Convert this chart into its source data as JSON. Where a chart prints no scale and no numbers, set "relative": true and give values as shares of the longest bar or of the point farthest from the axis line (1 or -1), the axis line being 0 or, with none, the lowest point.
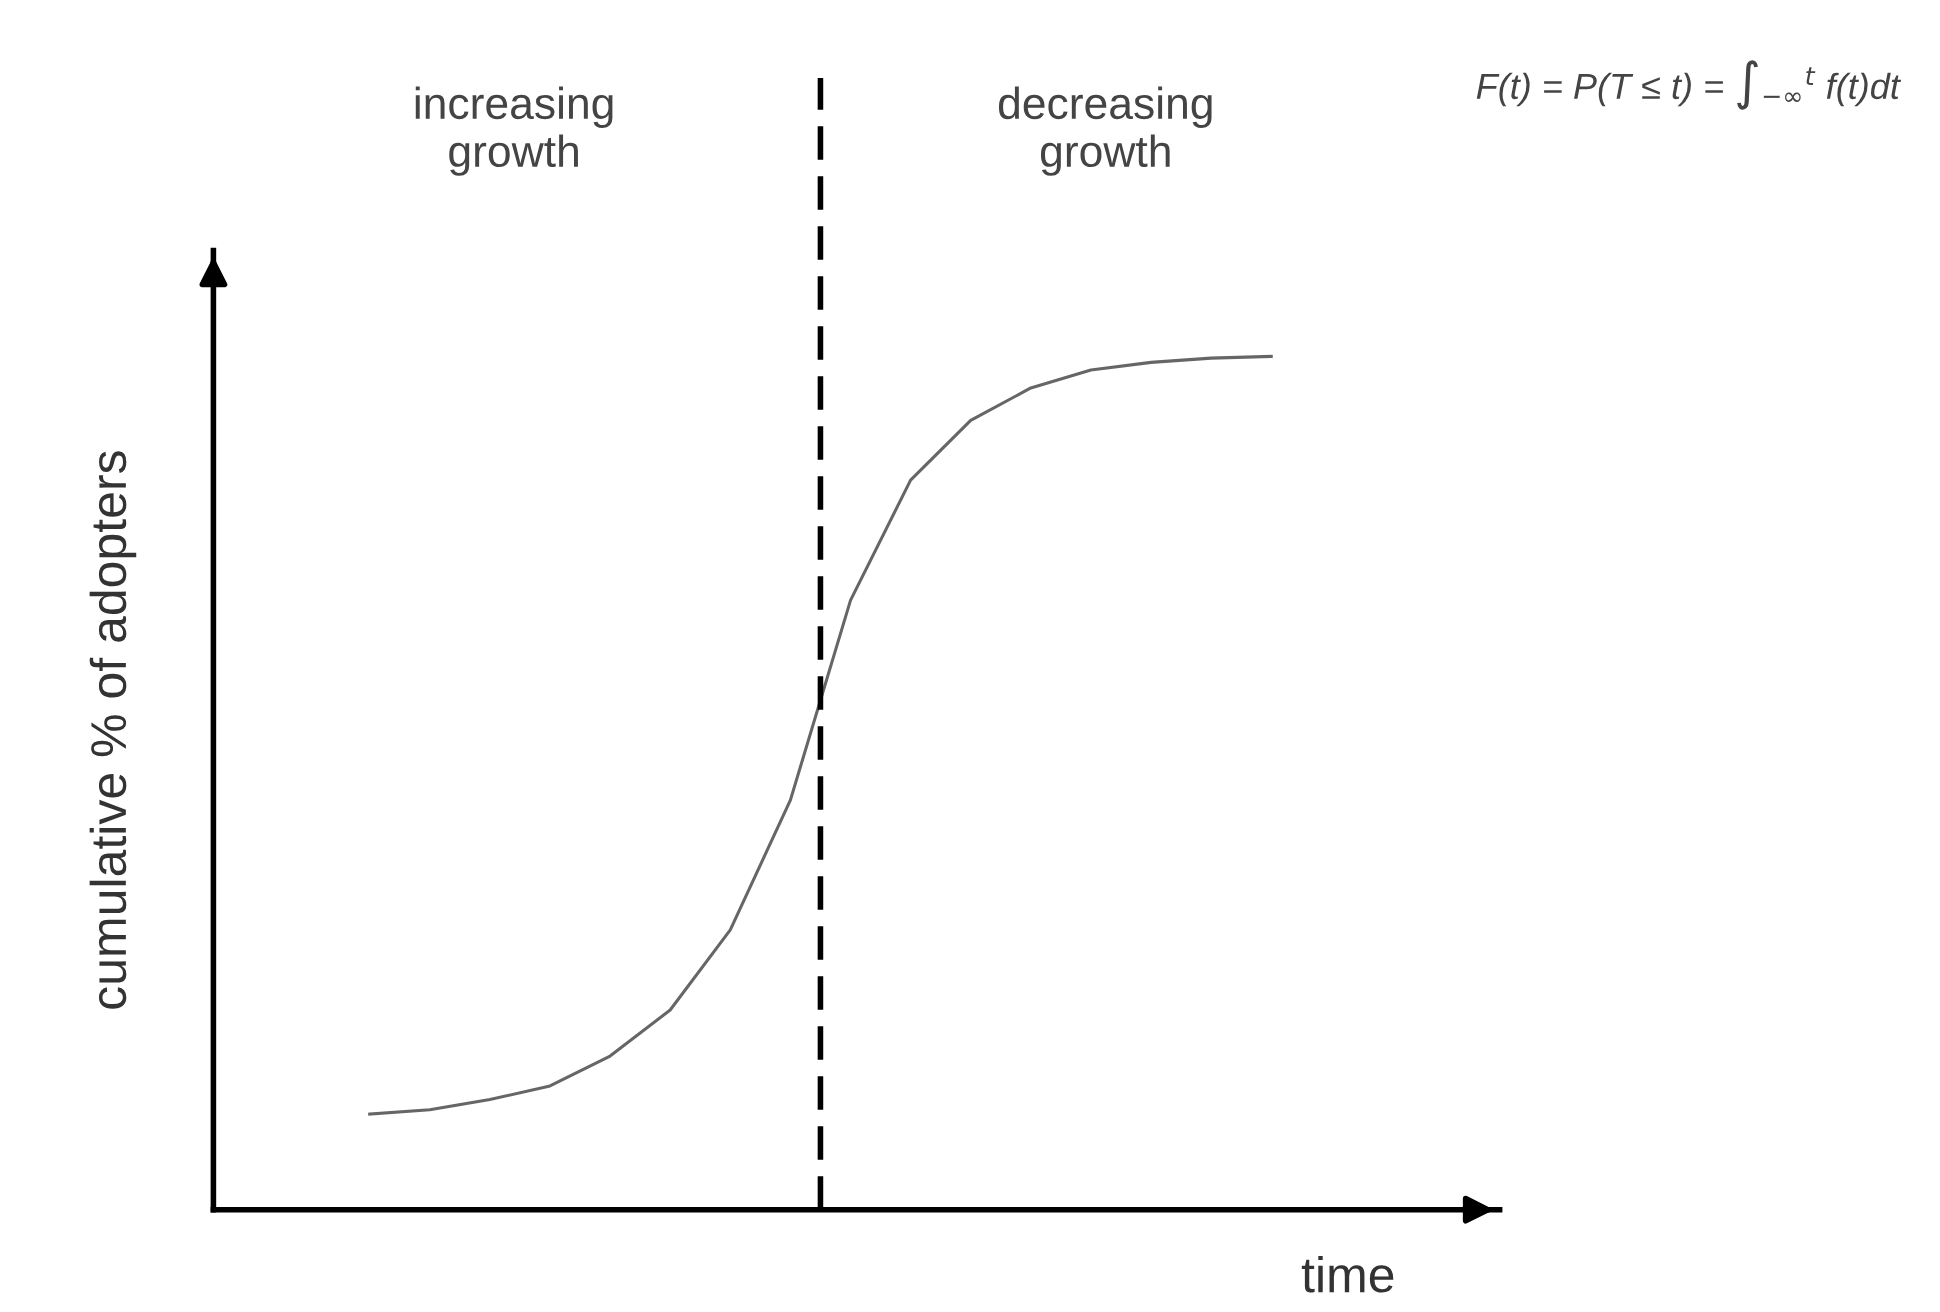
{
  "chart_data": {
    "type": "line",
    "relative": true,
    "xlabel": "time",
    "ylabel": "cumulative % of adopters",
    "categories": [
      null,
      null,
      null,
      null,
      null,
      null,
      null,
      null,
      null,
      null,
      null,
      null,
      null,
      null,
      null,
      null
    ],
    "series": [
      {
        "color": "#666666",
        "values": [
          0.112,
          0.117,
          0.129,
          0.145,
          0.18,
          0.234,
          0.328,
          0.48,
          0.714,
          0.855,
          0.925,
          0.963,
          0.984,
          0.993,
          0.998,
          1
        ]
      }
    ],
    "annotations": [
      "increasing\ngrowth",
      "decreasing\ngrowth",
      "F(t) = P(T ≤ t) = ∫$_{−∞}$$^{t}$ f(t)dt"
    ],
    "legend": false,
    "marker": "none",
    "line_style": "solid"
  }
}
